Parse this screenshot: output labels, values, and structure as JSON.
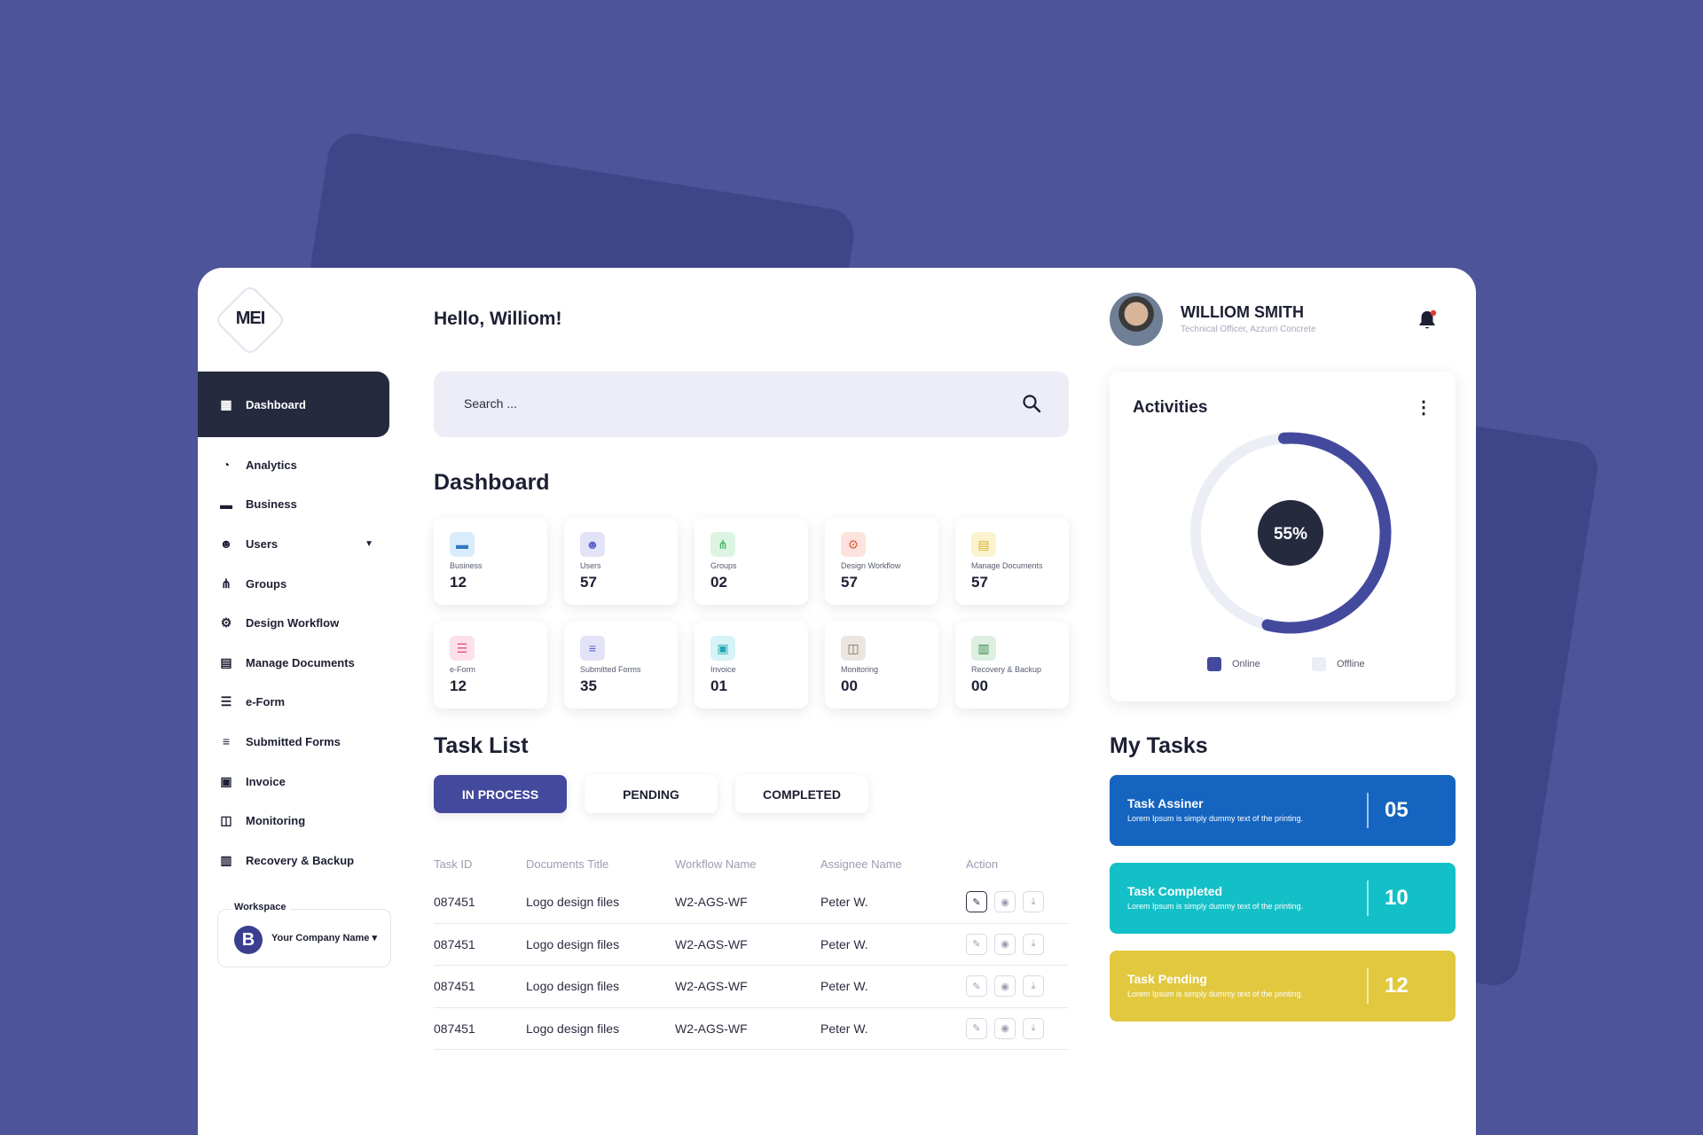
{
  "brand": {
    "logo_text": "MEI"
  },
  "greeting": "Hello, Williom!",
  "sidebar": {
    "active": {
      "label": "Dashboard",
      "icon": "grid-icon"
    },
    "items": [
      {
        "label": "Analytics",
        "icon": "pie-icon"
      },
      {
        "label": "Business",
        "icon": "briefcase-icon"
      },
      {
        "label": "Users",
        "icon": "users-icon",
        "has_caret": true
      },
      {
        "label": "Groups",
        "icon": "groups-icon"
      },
      {
        "label": "Design Workflow",
        "icon": "workflow-icon"
      },
      {
        "label": "Manage Documents",
        "icon": "document-icon"
      },
      {
        "label": "e-Form",
        "icon": "form-icon"
      },
      {
        "label": "Submitted Forms",
        "icon": "list-icon"
      },
      {
        "label": "Invoice",
        "icon": "invoice-icon"
      },
      {
        "label": "Monitoring",
        "icon": "cast-icon"
      },
      {
        "label": "Recovery & Backup",
        "icon": "clipboard-icon"
      }
    ],
    "workspace": {
      "label": "Workspace",
      "initial": "B",
      "name": "Your Company Name ▾"
    }
  },
  "search": {
    "placeholder": "Search ..."
  },
  "dashboard": {
    "title": "Dashboard",
    "tiles": [
      {
        "label": "Business",
        "value": "12",
        "icon": "briefcase-icon",
        "bg": "#d9ecfb",
        "fg": "#2f78c4"
      },
      {
        "label": "Users",
        "value": "57",
        "icon": "users-icon",
        "bg": "#e3e3f8",
        "fg": "#5a5fc7"
      },
      {
        "label": "Groups",
        "value": "02",
        "icon": "groups-icon",
        "bg": "#dcf5e3",
        "fg": "#34a85a"
      },
      {
        "label": "Design Workflow",
        "value": "57",
        "icon": "workflow-icon",
        "bg": "#fde3dd",
        "fg": "#e0664a"
      },
      {
        "label": "Manage Documents",
        "value": "57",
        "icon": "document-icon",
        "bg": "#fbf3cf",
        "fg": "#d9b52a"
      },
      {
        "label": "e-Form",
        "value": "12",
        "icon": "form-icon",
        "bg": "#fde0ea",
        "fg": "#e2507c"
      },
      {
        "label": "Submitted Forms",
        "value": "35",
        "icon": "list-icon",
        "bg": "#e3e3f8",
        "fg": "#5a5fc7"
      },
      {
        "label": "Invoice",
        "value": "01",
        "icon": "invoice-icon",
        "bg": "#d6f3f5",
        "fg": "#26a5b5"
      },
      {
        "label": "Monitoring",
        "value": "00",
        "icon": "cast-icon",
        "bg": "#ece6e0",
        "fg": "#7a6a5c"
      },
      {
        "label": "Recovery & Backup",
        "value": "00",
        "icon": "clipboard-icon",
        "bg": "#dcefe0",
        "fg": "#3d8a53"
      }
    ]
  },
  "task_list": {
    "title": "Task List",
    "tabs": [
      "IN PROCESS",
      "PENDING",
      "COMPLETED"
    ],
    "active_tab": "IN PROCESS",
    "columns": [
      "Task ID",
      "Documents Title",
      "Workflow Name",
      "Assignee Name",
      "Action"
    ],
    "rows": [
      {
        "id": "087451",
        "title": "Logo design files",
        "workflow": "W2-AGS-WF",
        "assignee": "Peter W."
      },
      {
        "id": "087451",
        "title": "Logo design files",
        "workflow": "W2-AGS-WF",
        "assignee": "Peter W."
      },
      {
        "id": "087451",
        "title": "Logo design files",
        "workflow": "W2-AGS-WF",
        "assignee": "Peter W."
      },
      {
        "id": "087451",
        "title": "Logo design files",
        "workflow": "W2-AGS-WF",
        "assignee": "Peter W."
      }
    ],
    "actions": [
      "edit-icon",
      "eye-icon",
      "download-icon"
    ]
  },
  "profile": {
    "name": "WILLIOM SMITH",
    "role": "Technical Officer, Azzurri Concrete"
  },
  "activities": {
    "title": "Activities",
    "percent": 55,
    "percent_label": "55%",
    "legend": [
      {
        "label": "Online",
        "color": "#43499c"
      },
      {
        "label": "Offline",
        "color": "#eceef5"
      }
    ]
  },
  "my_tasks": {
    "title": "My Tasks",
    "cards": [
      {
        "title": "Task Assiner",
        "desc": "Lorem Ipsum is simply dummy text of the printing.",
        "count": "05",
        "color": "#1565c0"
      },
      {
        "title": "Task Completed",
        "desc": "Lorem Ipsum is simply dummy text of the printing.",
        "count": "10",
        "color": "#13c0c7"
      },
      {
        "title": "Task Pending",
        "desc": "Lorem Ipsum is simply dummy text of the printing.",
        "count": "12",
        "color": "#e2c83f"
      }
    ]
  }
}
